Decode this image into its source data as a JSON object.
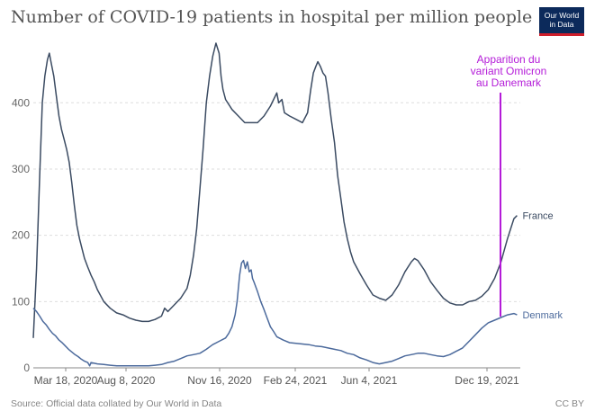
{
  "chart_data": {
    "type": "line",
    "title": "Number of COVID-19 patients in hospital per million people",
    "xlabel": "",
    "ylabel": "",
    "x_ticks": [
      "Mar 18, 2020",
      "Aug 8, 2020",
      "Nov 16, 2020",
      "Feb 24, 2021",
      "Jun 4, 2021",
      "Dec 19, 2021"
    ],
    "y_ticks": [
      "0",
      "100",
      "200",
      "300",
      "400"
    ],
    "ylim": [
      0,
      490
    ],
    "grid": true,
    "legend": "inline-right",
    "series": [
      {
        "name": "France",
        "color": "#3b4b62",
        "points": [
          [
            0,
            45
          ],
          [
            5,
            150
          ],
          [
            10,
            290
          ],
          [
            14,
            400
          ],
          [
            18,
            440
          ],
          [
            22,
            465
          ],
          [
            25,
            475
          ],
          [
            28,
            460
          ],
          [
            32,
            440
          ],
          [
            36,
            410
          ],
          [
            40,
            380
          ],
          [
            44,
            360
          ],
          [
            48,
            345
          ],
          [
            52,
            330
          ],
          [
            56,
            310
          ],
          [
            60,
            280
          ],
          [
            64,
            245
          ],
          [
            68,
            215
          ],
          [
            72,
            195
          ],
          [
            76,
            180
          ],
          [
            80,
            165
          ],
          [
            85,
            152
          ],
          [
            90,
            140
          ],
          [
            95,
            130
          ],
          [
            100,
            118
          ],
          [
            110,
            100
          ],
          [
            120,
            90
          ],
          [
            130,
            83
          ],
          [
            140,
            80
          ],
          [
            150,
            75
          ],
          [
            160,
            72
          ],
          [
            170,
            70
          ],
          [
            180,
            70
          ],
          [
            190,
            73
          ],
          [
            200,
            78
          ],
          [
            205,
            90
          ],
          [
            210,
            85
          ],
          [
            220,
            95
          ],
          [
            230,
            105
          ],
          [
            240,
            120
          ],
          [
            245,
            140
          ],
          [
            250,
            170
          ],
          [
            255,
            210
          ],
          [
            260,
            270
          ],
          [
            265,
            330
          ],
          [
            270,
            400
          ],
          [
            275,
            440
          ],
          [
            280,
            470
          ],
          [
            285,
            490
          ],
          [
            290,
            475
          ],
          [
            293,
            440
          ],
          [
            296,
            420
          ],
          [
            300,
            405
          ],
          [
            310,
            390
          ],
          [
            320,
            380
          ],
          [
            330,
            370
          ],
          [
            340,
            370
          ],
          [
            350,
            370
          ],
          [
            360,
            380
          ],
          [
            370,
            395
          ],
          [
            380,
            415
          ],
          [
            383,
            400
          ],
          [
            388,
            405
          ],
          [
            392,
            385
          ],
          [
            400,
            380
          ],
          [
            410,
            375
          ],
          [
            420,
            370
          ],
          [
            428,
            385
          ],
          [
            433,
            420
          ],
          [
            437,
            445
          ],
          [
            441,
            455
          ],
          [
            444,
            462
          ],
          [
            448,
            455
          ],
          [
            452,
            445
          ],
          [
            456,
            440
          ],
          [
            460,
            415
          ],
          [
            465,
            375
          ],
          [
            470,
            340
          ],
          [
            475,
            290
          ],
          [
            480,
            255
          ],
          [
            485,
            220
          ],
          [
            490,
            195
          ],
          [
            495,
            175
          ],
          [
            500,
            160
          ],
          [
            510,
            142
          ],
          [
            520,
            125
          ],
          [
            530,
            110
          ],
          [
            540,
            105
          ],
          [
            550,
            102
          ],
          [
            560,
            110
          ],
          [
            570,
            125
          ],
          [
            580,
            145
          ],
          [
            590,
            160
          ],
          [
            595,
            165
          ],
          [
            600,
            162
          ],
          [
            605,
            155
          ],
          [
            610,
            148
          ],
          [
            620,
            130
          ],
          [
            630,
            117
          ],
          [
            640,
            105
          ],
          [
            650,
            98
          ],
          [
            660,
            95
          ],
          [
            670,
            95
          ],
          [
            680,
            100
          ],
          [
            690,
            102
          ],
          [
            700,
            108
          ],
          [
            710,
            118
          ],
          [
            720,
            135
          ],
          [
            730,
            160
          ],
          [
            740,
            195
          ],
          [
            750,
            225
          ],
          [
            755,
            230
          ]
        ]
      },
      {
        "name": "Denmark",
        "color": "#4c6a9c",
        "points": [
          [
            0,
            90
          ],
          [
            5,
            85
          ],
          [
            10,
            78
          ],
          [
            15,
            70
          ],
          [
            20,
            65
          ],
          [
            25,
            58
          ],
          [
            30,
            52
          ],
          [
            35,
            48
          ],
          [
            40,
            42
          ],
          [
            45,
            38
          ],
          [
            50,
            33
          ],
          [
            55,
            28
          ],
          [
            60,
            24
          ],
          [
            65,
            20
          ],
          [
            70,
            17
          ],
          [
            75,
            13
          ],
          [
            80,
            10
          ],
          [
            85,
            8
          ],
          [
            88,
            3
          ],
          [
            90,
            8
          ],
          [
            100,
            6
          ],
          [
            110,
            5
          ],
          [
            120,
            4
          ],
          [
            130,
            3
          ],
          [
            140,
            3
          ],
          [
            150,
            3
          ],
          [
            160,
            3
          ],
          [
            170,
            3
          ],
          [
            180,
            3
          ],
          [
            190,
            4
          ],
          [
            200,
            5
          ],
          [
            210,
            8
          ],
          [
            220,
            10
          ],
          [
            230,
            14
          ],
          [
            240,
            18
          ],
          [
            250,
            20
          ],
          [
            260,
            22
          ],
          [
            270,
            28
          ],
          [
            280,
            35
          ],
          [
            290,
            40
          ],
          [
            300,
            45
          ],
          [
            305,
            52
          ],
          [
            310,
            62
          ],
          [
            315,
            80
          ],
          [
            318,
            100
          ],
          [
            320,
            120
          ],
          [
            322,
            140
          ],
          [
            325,
            158
          ],
          [
            328,
            162
          ],
          [
            331,
            150
          ],
          [
            334,
            160
          ],
          [
            337,
            145
          ],
          [
            340,
            148
          ],
          [
            342,
            135
          ],
          [
            345,
            128
          ],
          [
            350,
            115
          ],
          [
            355,
            100
          ],
          [
            360,
            88
          ],
          [
            365,
            75
          ],
          [
            370,
            62
          ],
          [
            375,
            55
          ],
          [
            380,
            47
          ],
          [
            390,
            42
          ],
          [
            400,
            38
          ],
          [
            410,
            37
          ],
          [
            420,
            36
          ],
          [
            430,
            35
          ],
          [
            440,
            33
          ],
          [
            450,
            32
          ],
          [
            460,
            30
          ],
          [
            470,
            28
          ],
          [
            480,
            26
          ],
          [
            490,
            22
          ],
          [
            500,
            20
          ],
          [
            510,
            15
          ],
          [
            520,
            12
          ],
          [
            530,
            8
          ],
          [
            540,
            6
          ],
          [
            550,
            8
          ],
          [
            560,
            10
          ],
          [
            570,
            14
          ],
          [
            580,
            18
          ],
          [
            590,
            20
          ],
          [
            600,
            22
          ],
          [
            610,
            22
          ],
          [
            620,
            20
          ],
          [
            630,
            18
          ],
          [
            640,
            17
          ],
          [
            650,
            20
          ],
          [
            660,
            25
          ],
          [
            670,
            30
          ],
          [
            680,
            40
          ],
          [
            690,
            50
          ],
          [
            700,
            60
          ],
          [
            710,
            68
          ],
          [
            720,
            72
          ],
          [
            730,
            76
          ],
          [
            740,
            80
          ],
          [
            750,
            82
          ],
          [
            755,
            80
          ]
        ]
      }
    ],
    "annotation": {
      "lines": [
        "Apparition du",
        "variant Omicron",
        "au Danemark"
      ],
      "color": "#b41bd8"
    }
  },
  "footer": {
    "source": "Source: Official data collated by Our World in Data",
    "license": "CC BY"
  },
  "logo": {
    "line1": "Our World",
    "line2": "in Data"
  }
}
